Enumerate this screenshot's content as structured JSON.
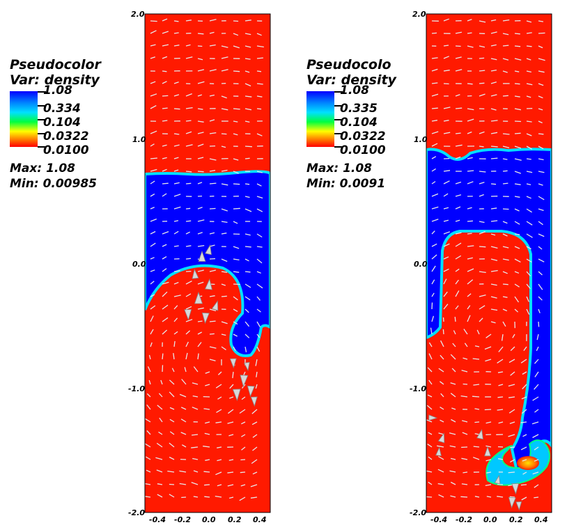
{
  "left_legend": {
    "title": "Pseudocolor",
    "var": "Var: density",
    "ticks": [
      "1.08",
      "0.334",
      "0.104",
      "0.0322",
      "0.0100"
    ],
    "max": "Max:  1.08",
    "min": "Min:  0.00985"
  },
  "right_legend": {
    "title": "Pseudocolo",
    "var": "Var: density",
    "ticks": [
      "1.08",
      "0.335",
      "0.104",
      "0.0322",
      "0.0100"
    ],
    "max": "Max:  1.08",
    "min": "Min:  0.0091"
  },
  "left_panel": {
    "y_ticks": [
      "2.0",
      "1.0",
      "0.0",
      "-1.0",
      "-2.0"
    ],
    "x_ticks": [
      "-0.4",
      "-0.2",
      "0.0",
      "0.2",
      "0.4"
    ]
  },
  "right_panel": {
    "y_ticks": [
      "2.0",
      "1.0",
      "0.0",
      "-1.0",
      "-2.0"
    ],
    "x_ticks": [
      "-0.4",
      "-0.2",
      "0.0",
      "0.2",
      "0.4"
    ]
  },
  "colors": {
    "light_fluid": "#ff1a00",
    "heavy_fluid": "#0000ff",
    "interface": "#00e0ff",
    "arrow": "#e8e8e8"
  }
}
